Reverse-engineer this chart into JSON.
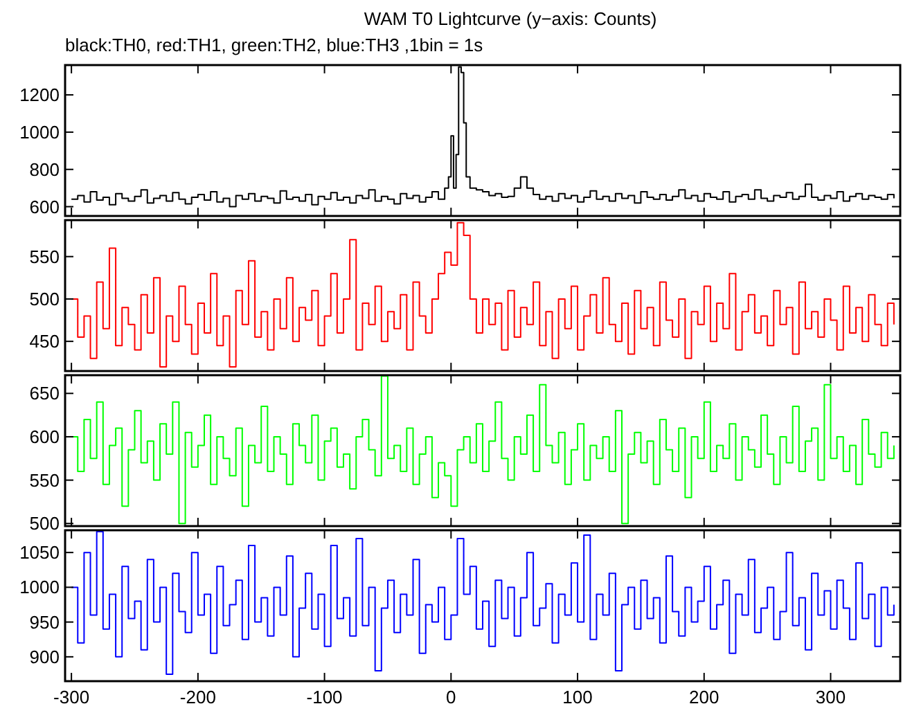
{
  "chart_data": [
    {
      "type": "step",
      "title": "WAM T0 Lightcurve (y−axis: Counts)",
      "subtitle": "black:TH0, red:TH1, green:TH2, blue:TH3 ,1bin = 1s",
      "xlim": [
        -305,
        355
      ],
      "xticks": [
        -300,
        -200,
        -100,
        0,
        100,
        200,
        300
      ],
      "ylim": [
        550,
        1360
      ],
      "yticks": [
        600,
        800,
        1000,
        1200
      ],
      "tick_labels": "y",
      "grid": false,
      "series": [
        {
          "color": "#000000",
          "x": [
            -300,
            -295,
            -290,
            -285,
            -280,
            -275,
            -270,
            -265,
            -260,
            -255,
            -250,
            -245,
            -240,
            -235,
            -230,
            -225,
            -220,
            -215,
            -210,
            -205,
            -200,
            -195,
            -190,
            -185,
            -180,
            -175,
            -170,
            -165,
            -160,
            -155,
            -150,
            -145,
            -140,
            -135,
            -130,
            -125,
            -120,
            -115,
            -110,
            -105,
            -100,
            -95,
            -90,
            -85,
            -80,
            -75,
            -70,
            -65,
            -60,
            -55,
            -50,
            -45,
            -40,
            -35,
            -30,
            -25,
            -20,
            -15,
            -10,
            -5,
            -2,
            0,
            2,
            4,
            6,
            8,
            10,
            12,
            15,
            20,
            25,
            30,
            35,
            40,
            45,
            50,
            55,
            60,
            65,
            70,
            75,
            80,
            85,
            90,
            95,
            100,
            105,
            110,
            115,
            120,
            125,
            130,
            135,
            140,
            145,
            150,
            155,
            160,
            165,
            170,
            175,
            180,
            185,
            190,
            195,
            200,
            205,
            210,
            215,
            220,
            225,
            230,
            235,
            240,
            245,
            250,
            255,
            260,
            265,
            270,
            275,
            280,
            285,
            290,
            295,
            300,
            305,
            310,
            315,
            320,
            325,
            330,
            335,
            340,
            345,
            350
          ],
          "values": [
            640,
            660,
            625,
            680,
            635,
            650,
            610,
            670,
            645,
            630,
            655,
            690,
            620,
            645,
            660,
            630,
            675,
            640,
            615,
            650,
            665,
            635,
            680,
            625,
            645,
            600,
            660,
            640,
            670,
            630,
            655,
            645,
            620,
            685,
            640,
            650,
            630,
            665,
            610,
            655,
            640,
            675,
            635,
            650,
            620,
            660,
            645,
            690,
            630,
            655,
            640,
            615,
            670,
            645,
            660,
            625,
            650,
            680,
            640,
            700,
            760,
            980,
            700,
            880,
            1350,
            1320,
            1050,
            760,
            700,
            690,
            680,
            660,
            670,
            650,
            655,
            700,
            760,
            700,
            665,
            640,
            655,
            630,
            670,
            645,
            660,
            625,
            650,
            685,
            640,
            655,
            630,
            670,
            645,
            660,
            620,
            680,
            650,
            640,
            665,
            635,
            655,
            690,
            645,
            660,
            630,
            670,
            650,
            640,
            680,
            625,
            655,
            665,
            640,
            690,
            645,
            630,
            660,
            650,
            675,
            640,
            655,
            720,
            650,
            635,
            660,
            645,
            680,
            630,
            655,
            670,
            640,
            660,
            650,
            640,
            665,
            645
          ]
        }
      ]
    },
    {
      "type": "step",
      "xlim": [
        -305,
        355
      ],
      "xticks": [
        -300,
        -200,
        -100,
        0,
        100,
        200,
        300
      ],
      "ylim": [
        415,
        593
      ],
      "yticks": [
        450,
        500,
        550
      ],
      "tick_labels": "y",
      "grid": false,
      "x": [
        -300,
        -295,
        -290,
        -285,
        -280,
        -275,
        -270,
        -265,
        -260,
        -255,
        -250,
        -245,
        -240,
        -235,
        -230,
        -225,
        -220,
        -215,
        -210,
        -205,
        -200,
        -195,
        -190,
        -185,
        -180,
        -175,
        -170,
        -165,
        -160,
        -155,
        -150,
        -145,
        -140,
        -135,
        -130,
        -125,
        -120,
        -115,
        -110,
        -105,
        -100,
        -95,
        -90,
        -85,
        -80,
        -75,
        -70,
        -65,
        -60,
        -55,
        -50,
        -45,
        -40,
        -35,
        -30,
        -25,
        -20,
        -15,
        -10,
        -5,
        0,
        5,
        10,
        15,
        20,
        25,
        30,
        35,
        40,
        45,
        50,
        55,
        60,
        65,
        70,
        75,
        80,
        85,
        90,
        95,
        100,
        105,
        110,
        115,
        120,
        125,
        130,
        135,
        140,
        145,
        150,
        155,
        160,
        165,
        170,
        175,
        180,
        185,
        190,
        195,
        200,
        205,
        210,
        215,
        220,
        225,
        230,
        235,
        240,
        245,
        250,
        255,
        260,
        265,
        270,
        275,
        280,
        285,
        290,
        295,
        300,
        305,
        310,
        315,
        320,
        325,
        330,
        335,
        340,
        345,
        350
      ],
      "series": [
        {
          "color": "#ff0000",
          "values": [
            500,
            455,
            480,
            430,
            520,
            465,
            560,
            445,
            490,
            470,
            440,
            505,
            460,
            525,
            420,
            480,
            450,
            515,
            470,
            435,
            495,
            460,
            530,
            445,
            480,
            420,
            510,
            470,
            545,
            455,
            485,
            440,
            500,
            465,
            525,
            450,
            490,
            475,
            510,
            445,
            480,
            530,
            460,
            500,
            570,
            440,
            495,
            470,
            515,
            450,
            485,
            465,
            505,
            440,
            520,
            480,
            460,
            500,
            530,
            555,
            540,
            590,
            575,
            500,
            460,
            500,
            470,
            495,
            440,
            510,
            455,
            490,
            470,
            520,
            445,
            485,
            430,
            500,
            465,
            515,
            440,
            480,
            505,
            460,
            525,
            470,
            450,
            495,
            435,
            510,
            465,
            490,
            445,
            520,
            475,
            455,
            500,
            430,
            485,
            470,
            515,
            450,
            495,
            465,
            530,
            440,
            485,
            505,
            460,
            480,
            445,
            510,
            470,
            490,
            435,
            520,
            465,
            485,
            455,
            500,
            475,
            440,
            515,
            460,
            490,
            450,
            505,
            470,
            445,
            495,
            470
          ]
        }
      ]
    },
    {
      "type": "step",
      "xlim": [
        -305,
        355
      ],
      "xticks": [
        -300,
        -200,
        -100,
        0,
        100,
        200,
        300
      ],
      "ylim": [
        497,
        671
      ],
      "yticks": [
        500,
        550,
        600,
        650
      ],
      "tick_labels": "y",
      "grid": false,
      "x": [
        -300,
        -295,
        -290,
        -285,
        -280,
        -275,
        -270,
        -265,
        -260,
        -255,
        -250,
        -245,
        -240,
        -235,
        -230,
        -225,
        -220,
        -215,
        -210,
        -205,
        -200,
        -195,
        -190,
        -185,
        -180,
        -175,
        -170,
        -165,
        -160,
        -155,
        -150,
        -145,
        -140,
        -135,
        -130,
        -125,
        -120,
        -115,
        -110,
        -105,
        -100,
        -95,
        -90,
        -85,
        -80,
        -75,
        -70,
        -65,
        -60,
        -55,
        -50,
        -45,
        -40,
        -35,
        -30,
        -25,
        -20,
        -15,
        -10,
        -5,
        0,
        5,
        10,
        15,
        20,
        25,
        30,
        35,
        40,
        45,
        50,
        55,
        60,
        65,
        70,
        75,
        80,
        85,
        90,
        95,
        100,
        105,
        110,
        115,
        120,
        125,
        130,
        135,
        140,
        145,
        150,
        155,
        160,
        165,
        170,
        175,
        180,
        185,
        190,
        195,
        200,
        205,
        210,
        215,
        220,
        225,
        230,
        235,
        240,
        245,
        250,
        255,
        260,
        265,
        270,
        275,
        280,
        285,
        290,
        295,
        300,
        305,
        310,
        315,
        320,
        325,
        330,
        335,
        340,
        345,
        350
      ],
      "series": [
        {
          "color": "#00ff00",
          "values": [
            600,
            560,
            620,
            575,
            640,
            545,
            590,
            610,
            520,
            585,
            630,
            570,
            595,
            550,
            615,
            580,
            640,
            500,
            605,
            565,
            590,
            625,
            545,
            600,
            575,
            555,
            610,
            520,
            590,
            570,
            635,
            560,
            600,
            580,
            545,
            615,
            590,
            570,
            625,
            550,
            595,
            610,
            565,
            580,
            540,
            600,
            620,
            585,
            555,
            670,
            575,
            590,
            560,
            610,
            545,
            580,
            600,
            530,
            570,
            555,
            520,
            585,
            600,
            570,
            615,
            560,
            595,
            640,
            575,
            550,
            600,
            580,
            625,
            560,
            660,
            590,
            570,
            605,
            545,
            585,
            615,
            550,
            590,
            575,
            600,
            560,
            630,
            500,
            580,
            605,
            570,
            595,
            545,
            620,
            585,
            560,
            610,
            530,
            600,
            575,
            640,
            560,
            590,
            575,
            615,
            550,
            600,
            585,
            565,
            625,
            580,
            545,
            600,
            570,
            635,
            560,
            595,
            610,
            550,
            660,
            575,
            600,
            560,
            590,
            545,
            620,
            580,
            565,
            605,
            575,
            590
          ]
        }
      ]
    },
    {
      "type": "step",
      "xlim": [
        -305,
        355
      ],
      "xticks": [
        -300,
        -200,
        -100,
        0,
        100,
        200,
        300
      ],
      "ylim": [
        865,
        1082
      ],
      "yticks": [
        900,
        950,
        1000,
        1050
      ],
      "grid": false,
      "x": [
        -300,
        -295,
        -290,
        -285,
        -280,
        -275,
        -270,
        -265,
        -260,
        -255,
        -250,
        -245,
        -240,
        -235,
        -230,
        -225,
        -220,
        -215,
        -210,
        -205,
        -200,
        -195,
        -190,
        -185,
        -180,
        -175,
        -170,
        -165,
        -160,
        -155,
        -150,
        -145,
        -140,
        -135,
        -130,
        -125,
        -120,
        -115,
        -110,
        -105,
        -100,
        -95,
        -90,
        -85,
        -80,
        -75,
        -70,
        -65,
        -60,
        -55,
        -50,
        -45,
        -40,
        -35,
        -30,
        -25,
        -20,
        -15,
        -10,
        -5,
        0,
        5,
        10,
        15,
        20,
        25,
        30,
        35,
        40,
        45,
        50,
        55,
        60,
        65,
        70,
        75,
        80,
        85,
        90,
        95,
        100,
        105,
        110,
        115,
        120,
        125,
        130,
        135,
        140,
        145,
        150,
        155,
        160,
        165,
        170,
        175,
        180,
        185,
        190,
        195,
        200,
        205,
        210,
        215,
        220,
        225,
        230,
        235,
        240,
        245,
        250,
        255,
        260,
        265,
        270,
        275,
        280,
        285,
        290,
        295,
        300,
        305,
        310,
        315,
        320,
        325,
        330,
        335,
        340,
        345,
        350
      ],
      "series": [
        {
          "color": "#0000ff",
          "values": [
            1000,
            920,
            1050,
            960,
            1080,
            940,
            990,
            900,
            1030,
            955,
            980,
            910,
            1040,
            950,
            1000,
            875,
            1020,
            965,
            935,
            1050,
            960,
            990,
            905,
            1030,
            945,
            975,
            1010,
            925,
            1060,
            950,
            985,
            930,
            1000,
            960,
            1045,
            900,
            970,
            1020,
            940,
            990,
            915,
            1060,
            955,
            985,
            930,
            1070,
            945,
            1000,
            880,
            970,
            1010,
            935,
            990,
            960,
            1040,
            905,
            975,
            950,
            1000,
            925,
            960,
            1070,
            990,
            1030,
            940,
            980,
            915,
            1010,
            955,
            1000,
            930,
            985,
            1050,
            945,
            970,
            1005,
            920,
            990,
            960,
            1035,
            950,
            1075,
            925,
            990,
            960,
            1020,
            880,
            975,
            1000,
            940,
            1010,
            955,
            985,
            920,
            1045,
            965,
            930,
            1000,
            950,
            980,
            1030,
            940,
            975,
            1010,
            905,
            990,
            960,
            1040,
            935,
            970,
            1000,
            925,
            965,
            1050,
            945,
            985,
            910,
            1020,
            960,
            995,
            940,
            1010,
            970,
            925,
            1035,
            955,
            990,
            915,
            1000,
            960,
            975
          ]
        }
      ]
    }
  ]
}
